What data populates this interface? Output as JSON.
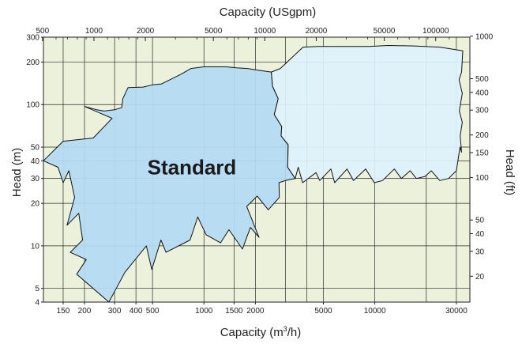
{
  "chart_data": {
    "type": "area",
    "title": "",
    "x_top_label": "Capacity (USgpm)",
    "x_bottom_label_main": "Capacity (m",
    "x_bottom_label_sup": "3",
    "x_bottom_label_tail": "/h)",
    "y_left_label": "Head (m)",
    "y_right_label": "Head (ft)",
    "bottom_axis": {
      "scale": "log",
      "range_m3h": [
        115,
        36000
      ],
      "ticks": [
        {
          "v": 150,
          "label": "150"
        },
        {
          "v": 200,
          "label": "200"
        },
        {
          "v": 300,
          "label": "300"
        },
        {
          "v": 400,
          "label": "400"
        },
        {
          "v": 500,
          "label": "500"
        },
        {
          "v": 1000,
          "label": "1000"
        },
        {
          "v": 1500,
          "label": "1500"
        },
        {
          "v": 2000,
          "label": "2000"
        },
        {
          "v": 5000,
          "label": "5000"
        },
        {
          "v": 10000,
          "label": "10000"
        },
        {
          "v": 30000,
          "label": "30000"
        }
      ],
      "gridlines": [
        150,
        200,
        300,
        400,
        500,
        1000,
        1500,
        2000,
        3000,
        4000,
        5000,
        10000,
        20000,
        30000
      ]
    },
    "top_axis": {
      "scale": "log",
      "ticks": [
        {
          "v": 500,
          "label": "500"
        },
        {
          "v": 1000,
          "label": "1000"
        },
        {
          "v": 2000,
          "label": "2000"
        },
        {
          "v": 5000,
          "label": "5000"
        },
        {
          "v": 10000,
          "label": "10000"
        },
        {
          "v": 20000,
          "label": "20000"
        },
        {
          "v": 50000,
          "label": "50000"
        },
        {
          "v": 100000,
          "label": "100000"
        }
      ],
      "minor_ticks": [
        600,
        700,
        800,
        900,
        1200,
        1400,
        1600,
        1800,
        3000,
        4000,
        6000,
        7000,
        8000,
        9000,
        30000,
        40000,
        60000,
        70000,
        80000,
        90000,
        120000
      ]
    },
    "left_axis": {
      "scale": "log",
      "range_m": [
        4,
        300
      ],
      "ticks": [
        {
          "v": 4,
          "label": "4"
        },
        {
          "v": 5,
          "label": "5"
        },
        {
          "v": 10,
          "label": "10"
        },
        {
          "v": 20,
          "label": "20"
        },
        {
          "v": 30,
          "label": "30"
        },
        {
          "v": 40,
          "label": "40"
        },
        {
          "v": 50,
          "label": "50"
        },
        {
          "v": 100,
          "label": "100"
        },
        {
          "v": 200,
          "label": "200"
        },
        {
          "v": 300,
          "label": "300"
        }
      ],
      "gridlines": [
        5,
        10,
        20,
        30,
        40,
        50,
        100,
        200
      ]
    },
    "right_axis": {
      "scale": "log",
      "ticks": [
        {
          "v": 20,
          "label": "20"
        },
        {
          "v": 30,
          "label": "30"
        },
        {
          "v": 40,
          "label": "40"
        },
        {
          "v": 50,
          "label": "50"
        },
        {
          "v": 100,
          "label": "100"
        },
        {
          "v": 150,
          "label": "150"
        },
        {
          "v": 200,
          "label": "200"
        },
        {
          "v": 300,
          "label": "300"
        },
        {
          "v": 400,
          "label": "400"
        },
        {
          "v": 500,
          "label": "500"
        },
        {
          "v": 1000,
          "label": "1000"
        }
      ]
    },
    "grid": true,
    "series": [
      {
        "name": "Standard",
        "color": "#b4dcf4",
        "points": [
          [
            115,
            40
          ],
          [
            140,
            36
          ],
          [
            150,
            28
          ],
          [
            162,
            34
          ],
          [
            175,
            22
          ],
          [
            158,
            14
          ],
          [
            185,
            17
          ],
          [
            195,
            11
          ],
          [
            165,
            9
          ],
          [
            205,
            8
          ],
          [
            180,
            6.3
          ],
          [
            278,
            4
          ],
          [
            345,
            6.5
          ],
          [
            460,
            10
          ],
          [
            495,
            6.8
          ],
          [
            560,
            11
          ],
          [
            600,
            9
          ],
          [
            830,
            11
          ],
          [
            920,
            16
          ],
          [
            1030,
            12
          ],
          [
            1250,
            10.5
          ],
          [
            1400,
            13
          ],
          [
            1680,
            9.5
          ],
          [
            1870,
            13.5
          ],
          [
            2100,
            11.5
          ],
          [
            1780,
            19
          ],
          [
            2050,
            22.5
          ],
          [
            2380,
            18
          ],
          [
            2760,
            22
          ],
          [
            2750,
            28
          ],
          [
            3000,
            29
          ],
          [
            3420,
            30
          ],
          [
            3090,
            36
          ],
          [
            3110,
            52
          ],
          [
            2830,
            60
          ],
          [
            2850,
            70
          ],
          [
            2580,
            85
          ],
          [
            2720,
            110
          ],
          [
            2520,
            135
          ],
          [
            2480,
            170
          ],
          [
            2070,
            175
          ],
          [
            1800,
            180
          ],
          [
            1550,
            182
          ],
          [
            1350,
            185
          ],
          [
            1160,
            185
          ],
          [
            1000,
            185
          ],
          [
            840,
            180
          ],
          [
            740,
            165
          ],
          [
            565,
            140
          ],
          [
            500,
            138
          ],
          [
            440,
            133
          ],
          [
            360,
            132
          ],
          [
            335,
            110
          ],
          [
            330,
            95
          ],
          [
            300,
            92
          ],
          [
            260,
            90
          ],
          [
            235,
            92
          ],
          [
            200,
            97
          ],
          [
            290,
            80
          ],
          [
            225,
            58
          ],
          [
            150,
            55
          ],
          [
            115,
            40
          ]
        ]
      },
      {
        "name": "",
        "color": "#def1fb",
        "points": [
          [
            3110,
            52
          ],
          [
            3090,
            36
          ],
          [
            3420,
            30
          ],
          [
            3560,
            36
          ],
          [
            3780,
            28
          ],
          [
            4530,
            33
          ],
          [
            4760,
            29
          ],
          [
            5530,
            35
          ],
          [
            5820,
            28
          ],
          [
            6880,
            35
          ],
          [
            7500,
            29
          ],
          [
            8840,
            35
          ],
          [
            9930,
            28
          ],
          [
            11100,
            29
          ],
          [
            13000,
            35
          ],
          [
            14300,
            30
          ],
          [
            16100,
            34
          ],
          [
            17500,
            30
          ],
          [
            19700,
            31
          ],
          [
            21400,
            34
          ],
          [
            24000,
            29
          ],
          [
            27000,
            30
          ],
          [
            30000,
            34
          ],
          [
            31500,
            50
          ],
          [
            32200,
            46
          ],
          [
            31600,
            60
          ],
          [
            32500,
            75
          ],
          [
            31200,
            90
          ],
          [
            32500,
            120
          ],
          [
            31100,
            150
          ],
          [
            32200,
            170
          ],
          [
            32700,
            240
          ],
          [
            24000,
            255
          ],
          [
            17000,
            260
          ],
          [
            12000,
            262
          ],
          [
            9200,
            258
          ],
          [
            6500,
            258
          ],
          [
            4600,
            258
          ],
          [
            3800,
            255
          ],
          [
            2800,
            180
          ],
          [
            2480,
            170
          ],
          [
            2520,
            135
          ],
          [
            2720,
            110
          ],
          [
            2580,
            85
          ],
          [
            2850,
            70
          ],
          [
            2830,
            60
          ],
          [
            3110,
            52
          ]
        ]
      }
    ],
    "annotations": [
      {
        "text": "Standard",
        "x": 850,
        "y": 36
      }
    ]
  }
}
